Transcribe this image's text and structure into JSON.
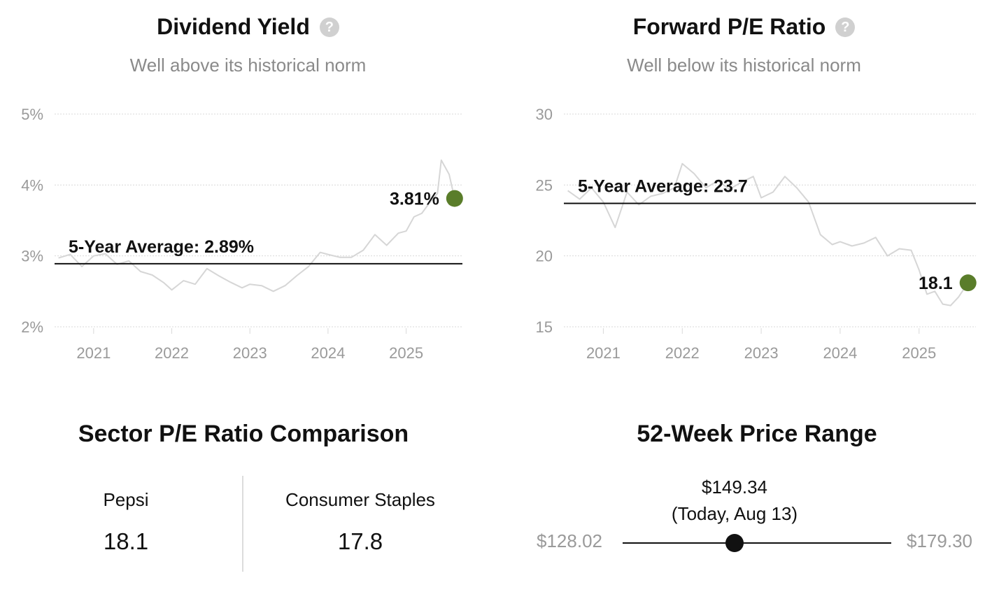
{
  "dividend": {
    "title": "Dividend Yield",
    "subtitle": "Well above its historical norm",
    "help_icon": "?"
  },
  "pe": {
    "title": "Forward P/E Ratio",
    "subtitle": "Well below its historical norm",
    "help_icon": "?"
  },
  "sector": {
    "title": "Sector P/E Ratio Comparison",
    "left_name": "Pepsi",
    "left_value": "18.1",
    "right_name": "Consumer Staples",
    "right_value": "17.8"
  },
  "range": {
    "title": "52-Week Price Range",
    "price": "$149.34",
    "date_note": "(Today, Aug 13)",
    "low": "$128.02",
    "high": "$179.30",
    "position_fraction": 0.416
  },
  "colors": {
    "line": "#d6d6d6",
    "marker": "#5a7d2a",
    "grid": "#d9d9d9",
    "tick": "#9a9a9a"
  },
  "chart_data": [
    {
      "type": "line",
      "title": "Dividend Yield",
      "subtitle": "Well above its historical norm",
      "xlabel": "",
      "ylabel": "",
      "x_ticks": [
        "2021",
        "2022",
        "2023",
        "2024",
        "2025"
      ],
      "y_ticks": [
        "2%",
        "3%",
        "4%",
        "5%"
      ],
      "ylim": [
        2,
        5
      ],
      "xlim": [
        2020.5,
        2025.72
      ],
      "grid": true,
      "average": {
        "value": 2.89,
        "label": "5-Year Average: 2.89%"
      },
      "current": {
        "x": 2025.62,
        "value": 3.81,
        "label": "3.81%"
      },
      "series": [
        {
          "x": [
            2020.55,
            2020.7,
            2020.85,
            2021.0,
            2021.15,
            2021.3,
            2021.45,
            2021.6,
            2021.75,
            2021.9,
            2022.0,
            2022.15,
            2022.3,
            2022.45,
            2022.6,
            2022.75,
            2022.9,
            2023.0,
            2023.15,
            2023.3,
            2023.45,
            2023.6,
            2023.75,
            2023.9,
            2024.0,
            2024.15,
            2024.3,
            2024.45,
            2024.6,
            2024.75,
            2024.9,
            2025.0,
            2025.1,
            2025.2,
            2025.3,
            2025.4,
            2025.45,
            2025.55,
            2025.62
          ],
          "values": [
            2.97,
            3.02,
            2.85,
            3.0,
            3.03,
            2.88,
            2.93,
            2.78,
            2.73,
            2.62,
            2.52,
            2.65,
            2.6,
            2.82,
            2.72,
            2.63,
            2.55,
            2.6,
            2.58,
            2.5,
            2.58,
            2.72,
            2.85,
            3.05,
            3.02,
            2.98,
            2.98,
            3.08,
            3.3,
            3.15,
            3.32,
            3.35,
            3.55,
            3.6,
            3.75,
            3.88,
            4.35,
            4.15,
            3.81
          ]
        }
      ]
    },
    {
      "type": "line",
      "title": "Forward P/E Ratio",
      "subtitle": "Well below its historical norm",
      "xlabel": "",
      "ylabel": "",
      "x_ticks": [
        "2021",
        "2022",
        "2023",
        "2024",
        "2025"
      ],
      "y_ticks": [
        "15",
        "20",
        "25",
        "30"
      ],
      "ylim": [
        15,
        30
      ],
      "xlim": [
        2020.5,
        2025.72
      ],
      "grid": true,
      "average": {
        "value": 23.7,
        "label": "5-Year Average: 23.7"
      },
      "current": {
        "x": 2025.62,
        "value": 18.1,
        "label": "18.1"
      },
      "series": [
        {
          "x": [
            2020.55,
            2020.7,
            2020.85,
            2021.0,
            2021.15,
            2021.3,
            2021.45,
            2021.6,
            2021.75,
            2021.9,
            2022.0,
            2022.15,
            2022.3,
            2022.45,
            2022.6,
            2022.75,
            2022.9,
            2023.0,
            2023.15,
            2023.3,
            2023.45,
            2023.6,
            2023.75,
            2023.9,
            2024.0,
            2024.15,
            2024.3,
            2024.45,
            2024.6,
            2024.75,
            2024.9,
            2025.0,
            2025.1,
            2025.2,
            2025.3,
            2025.4,
            2025.5,
            2025.62
          ],
          "values": [
            24.6,
            24.0,
            24.8,
            23.8,
            22.0,
            24.5,
            23.6,
            24.2,
            24.4,
            24.8,
            26.5,
            25.8,
            24.8,
            25.3,
            24.7,
            25.2,
            25.6,
            24.1,
            24.5,
            25.6,
            24.8,
            23.8,
            21.5,
            20.8,
            21.0,
            20.7,
            20.9,
            21.3,
            20.0,
            20.5,
            20.4,
            19.0,
            17.3,
            17.5,
            16.6,
            16.5,
            17.1,
            18.1
          ]
        }
      ]
    }
  ]
}
